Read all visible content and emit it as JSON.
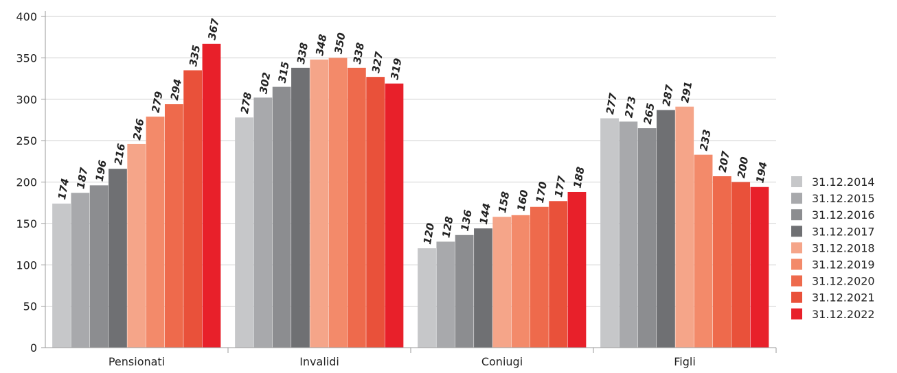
{
  "chart_data": {
    "type": "bar",
    "title": "",
    "xlabel": "",
    "ylabel": "",
    "categories": [
      "Pensionati",
      "Invalidi",
      "Coniugi",
      "Figli"
    ],
    "ylim": [
      0,
      400
    ],
    "yticks": [
      0,
      50,
      100,
      150,
      200,
      250,
      300,
      350,
      400
    ],
    "grid": true,
    "legend_position": "right",
    "series": [
      {
        "name": "31.12.2014",
        "color": "#c6c7c9",
        "values": [
          174,
          278,
          120,
          277
        ]
      },
      {
        "name": "31.12.2015",
        "color": "#a8a9ac",
        "values": [
          187,
          302,
          128,
          273
        ]
      },
      {
        "name": "31.12.2016",
        "color": "#8c8d90",
        "values": [
          196,
          315,
          136,
          265
        ]
      },
      {
        "name": "31.12.2017",
        "color": "#6f7073",
        "values": [
          216,
          338,
          144,
          287
        ]
      },
      {
        "name": "31.12.2018",
        "color": "#f5a589",
        "values": [
          246,
          348,
          158,
          291
        ]
      },
      {
        "name": "31.12.2019",
        "color": "#f38a6a",
        "values": [
          279,
          350,
          160,
          233
        ]
      },
      {
        "name": "31.12.2020",
        "color": "#ee6a4c",
        "values": [
          294,
          338,
          170,
          207
        ]
      },
      {
        "name": "31.12.2021",
        "color": "#e9513a",
        "values": [
          335,
          327,
          177,
          200
        ]
      },
      {
        "name": "31.12.2022",
        "color": "#e8202a",
        "values": [
          367,
          319,
          188,
          194
        ]
      }
    ]
  }
}
